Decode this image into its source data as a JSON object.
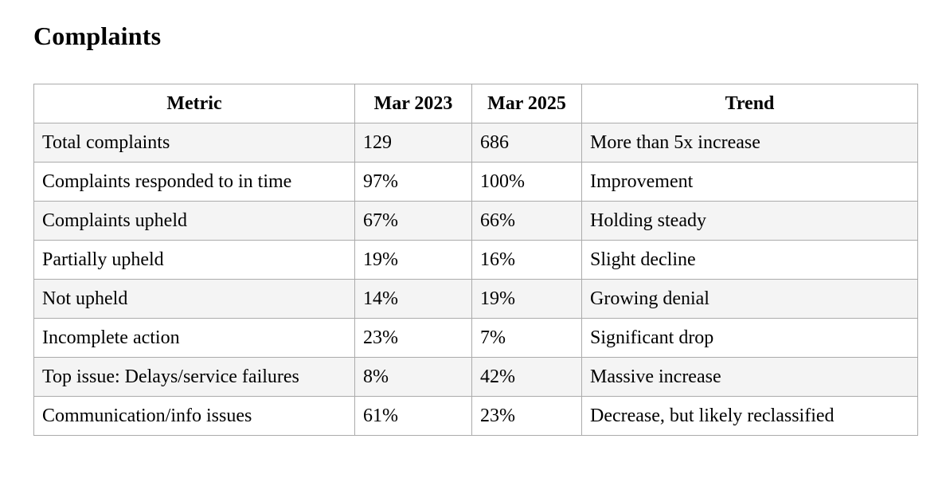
{
  "page": {
    "heading": "Complaints"
  },
  "colors": {
    "row_stripe": "#f4f4f4",
    "border": "#ababab",
    "text": "#000000",
    "background": "#ffffff"
  },
  "table": {
    "columns": [
      {
        "key": "metric",
        "label": "Metric"
      },
      {
        "key": "mar2023",
        "label": "Mar 2023"
      },
      {
        "key": "mar2025",
        "label": "Mar 2025"
      },
      {
        "key": "trend",
        "label": "Trend"
      }
    ],
    "rows": [
      {
        "metric": "Total complaints",
        "mar2023": "129",
        "mar2025": "686",
        "trend": "More than 5x increase"
      },
      {
        "metric": "Complaints responded to in time",
        "mar2023": "97%",
        "mar2025": "100%",
        "trend": "Improvement"
      },
      {
        "metric": "Complaints upheld",
        "mar2023": "67%",
        "mar2025": "66%",
        "trend": "Holding steady"
      },
      {
        "metric": "Partially upheld",
        "mar2023": "19%",
        "mar2025": "16%",
        "trend": "Slight decline"
      },
      {
        "metric": "Not upheld",
        "mar2023": "14%",
        "mar2025": "19%",
        "trend": "Growing denial"
      },
      {
        "metric": "Incomplete action",
        "mar2023": "23%",
        "mar2025": "7%",
        "trend": "Significant drop"
      },
      {
        "metric": "Top issue: Delays/service failures",
        "mar2023": "8%",
        "mar2025": "42%",
        "trend": "Massive increase"
      },
      {
        "metric": "Communication/info issues",
        "mar2023": "61%",
        "mar2025": "23%",
        "trend": "Decrease, but likely reclassified"
      }
    ]
  }
}
